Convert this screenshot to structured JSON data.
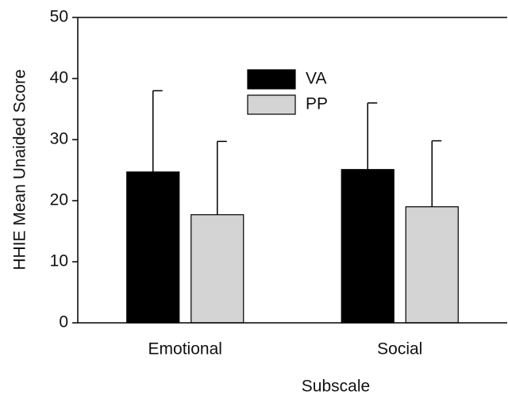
{
  "chart_data": {
    "type": "bar",
    "xlabel": "Subscale",
    "ylabel": "HHIE Mean Unaided Score",
    "categories": [
      "Emotional",
      "Social"
    ],
    "series": [
      {
        "name": "VA",
        "color": "#000000",
        "values": [
          24.7,
          25.1
        ],
        "errors": [
          13.3,
          10.9
        ]
      },
      {
        "name": "PP",
        "color": "#d4d4d4",
        "values": [
          17.7,
          19.0
        ],
        "errors": [
          12.0,
          10.8
        ]
      }
    ],
    "ylim": [
      0,
      50
    ],
    "yticks": [
      0,
      10,
      20,
      30,
      40,
      50
    ],
    "legend": "upper center"
  }
}
